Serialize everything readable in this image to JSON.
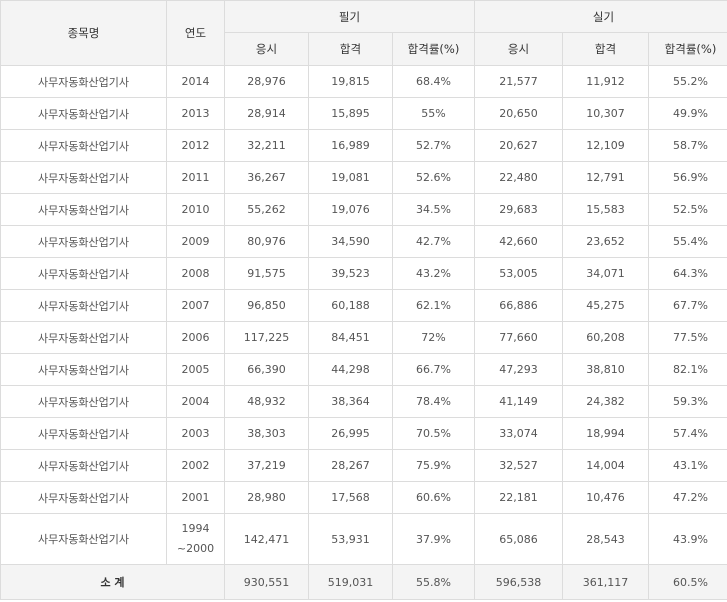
{
  "header": {
    "name_col": "종목명",
    "year_col": "연도",
    "written_group": "필기",
    "practical_group": "실기",
    "sub_cols": [
      "응시",
      "합격",
      "합격률(%)"
    ]
  },
  "rows": [
    {
      "name": "사무자동화산업기사",
      "year": "2014",
      "written": [
        "28,976",
        "19,815",
        "68.4%"
      ],
      "practical": [
        "21,577",
        "11,912",
        "55.2%"
      ]
    },
    {
      "name": "사무자동화산업기사",
      "year": "2013",
      "written": [
        "28,914",
        "15,895",
        "55%"
      ],
      "practical": [
        "20,650",
        "10,307",
        "49.9%"
      ]
    },
    {
      "name": "사무자동화산업기사",
      "year": "2012",
      "written": [
        "32,211",
        "16,989",
        "52.7%"
      ],
      "practical": [
        "20,627",
        "12,109",
        "58.7%"
      ]
    },
    {
      "name": "사무자동화산업기사",
      "year": "2011",
      "written": [
        "36,267",
        "19,081",
        "52.6%"
      ],
      "practical": [
        "22,480",
        "12,791",
        "56.9%"
      ]
    },
    {
      "name": "사무자동화산업기사",
      "year": "2010",
      "written": [
        "55,262",
        "19,076",
        "34.5%"
      ],
      "practical": [
        "29,683",
        "15,583",
        "52.5%"
      ]
    },
    {
      "name": "사무자동화산업기사",
      "year": "2009",
      "written": [
        "80,976",
        "34,590",
        "42.7%"
      ],
      "practical": [
        "42,660",
        "23,652",
        "55.4%"
      ]
    },
    {
      "name": "사무자동화산업기사",
      "year": "2008",
      "written": [
        "91,575",
        "39,523",
        "43.2%"
      ],
      "practical": [
        "53,005",
        "34,071",
        "64.3%"
      ]
    },
    {
      "name": "사무자동화산업기사",
      "year": "2007",
      "written": [
        "96,850",
        "60,188",
        "62.1%"
      ],
      "practical": [
        "66,886",
        "45,275",
        "67.7%"
      ]
    },
    {
      "name": "사무자동화산업기사",
      "year": "2006",
      "written": [
        "117,225",
        "84,451",
        "72%"
      ],
      "practical": [
        "77,660",
        "60,208",
        "77.5%"
      ]
    },
    {
      "name": "사무자동화산업기사",
      "year": "2005",
      "written": [
        "66,390",
        "44,298",
        "66.7%"
      ],
      "practical": [
        "47,293",
        "38,810",
        "82.1%"
      ]
    },
    {
      "name": "사무자동화산업기사",
      "year": "2004",
      "written": [
        "48,932",
        "38,364",
        "78.4%"
      ],
      "practical": [
        "41,149",
        "24,382",
        "59.3%"
      ]
    },
    {
      "name": "사무자동화산업기사",
      "year": "2003",
      "written": [
        "38,303",
        "26,995",
        "70.5%"
      ],
      "practical": [
        "33,074",
        "18,994",
        "57.4%"
      ]
    },
    {
      "name": "사무자동화산업기사",
      "year": "2002",
      "written": [
        "37,219",
        "28,267",
        "75.9%"
      ],
      "practical": [
        "32,527",
        "14,004",
        "43.1%"
      ]
    },
    {
      "name": "사무자동화산업기사",
      "year": "2001",
      "written": [
        "28,980",
        "17,568",
        "60.6%"
      ],
      "practical": [
        "22,181",
        "10,476",
        "47.2%"
      ]
    },
    {
      "name": "사무자동화산업기사",
      "year": "1994 ~2000",
      "written": [
        "142,471",
        "53,931",
        "37.9%"
      ],
      "practical": [
        "65,086",
        "28,543",
        "43.9%"
      ]
    }
  ],
  "total": {
    "label": "소 계",
    "written": [
      "930,551",
      "519,031",
      "55.8%"
    ],
    "practical": [
      "596,538",
      "361,117",
      "60.5%"
    ]
  }
}
